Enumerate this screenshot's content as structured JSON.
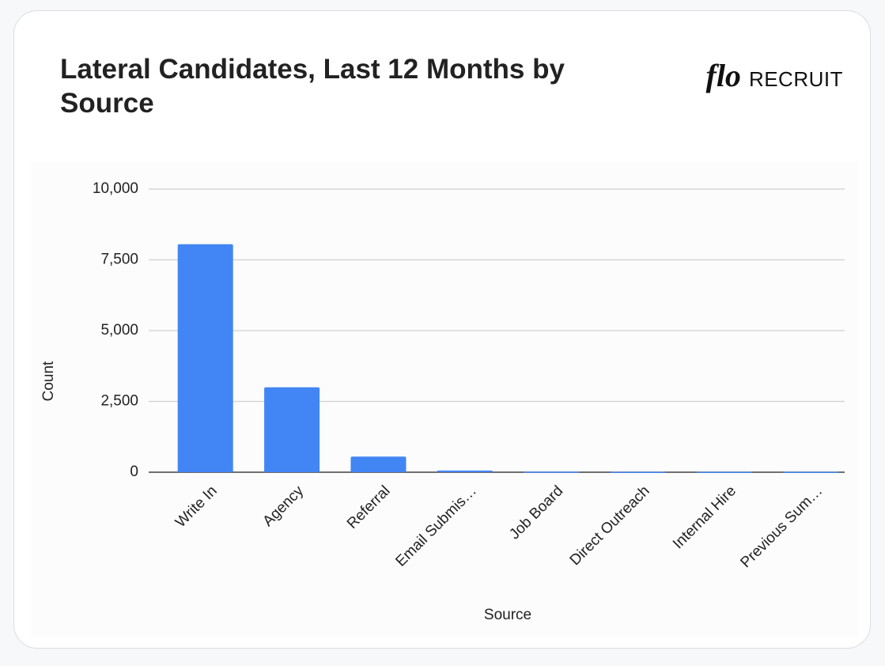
{
  "brand": {
    "mark": "flo",
    "name": "RECRUIT"
  },
  "chart_data": {
    "type": "bar",
    "title": "Lateral Candidates, Last 12 Months by Source",
    "x_label": "Source",
    "y_label": "Count",
    "categories": [
      "Write In",
      "Agency",
      "Referral",
      "Email Submis…",
      "Job Board",
      "Direct Outreach",
      "Internal Hire",
      "Previous Sum…"
    ],
    "values": [
      8050,
      3000,
      550,
      60,
      20,
      15,
      15,
      15
    ],
    "color": "#4285f4",
    "ylim": [
      0,
      10000
    ],
    "yticks": [
      0,
      {
        "value": 2500,
        "label": "2,500"
      },
      {
        "value": 5000,
        "label": "5,000"
      },
      {
        "value": 7500,
        "label": "7,500"
      },
      {
        "value": 10000,
        "label": "10,000"
      }
    ],
    "grid": true
  }
}
